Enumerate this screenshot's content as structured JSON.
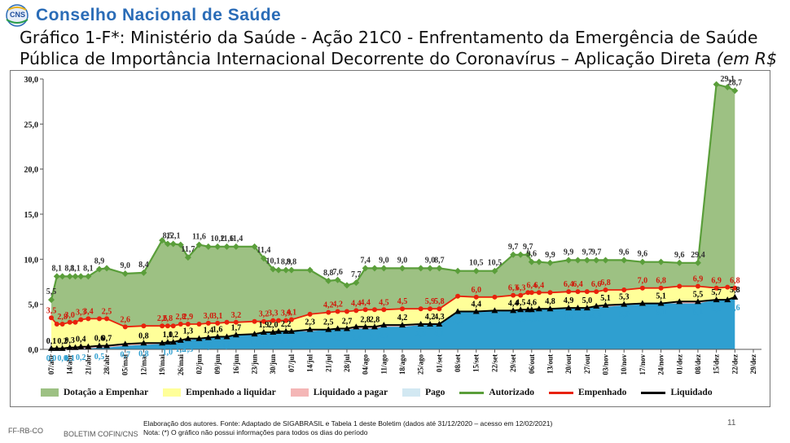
{
  "header": {
    "logo_text": "CNS",
    "org_name": "Conselho Nacional de Saúde",
    "title_main": "Gráfico 1-F*: Ministério da Saúde - Ação 21C0 - Enfrentamento da Emergência de Saúde Pública de Importância Internacional Decorrente do Coronavírus – Aplicação Direta ",
    "title_unit": "(em R$ bilhões)"
  },
  "footer": {
    "source": "Elaboração dos autores. Fonte: Adaptado de SIGABRASIL e Tabela 1 deste Boletim  (dados até 31/12/2020 – acesso em 12/02/2021)",
    "note": "Nota: (*) O gráfico não possui informações para todos os dias do período",
    "code": "FF-RB-CO",
    "bulletin": "BOLETIM COFIN/CNS",
    "page": "11"
  },
  "chart_data": {
    "type": "area",
    "title": "",
    "xlabel": "",
    "ylabel": "",
    "ylim": [
      0,
      30
    ],
    "yticks": [
      "0,0",
      "5,0",
      "10,0",
      "15,0",
      "20,0",
      "25,0",
      "30,0"
    ],
    "grid": false,
    "legend_position": "bottom",
    "x_tick_labels": [
      "07/abr",
      "14/abr",
      "21/abr",
      "28/abr",
      "05/mai",
      "12/mai",
      "19/mai",
      "26/mai",
      "02/jun",
      "09/jun",
      "16/jun",
      "23/jun",
      "30/jun",
      "07/jul",
      "14/jul",
      "21/jul",
      "28/jul",
      "04/ago",
      "11/ago",
      "18/ago",
      "25/ago",
      "01/set",
      "08/set",
      "15/set",
      "22/set",
      "29/set",
      "06/out",
      "13/out",
      "20/out",
      "27/out",
      "03/nov",
      "10/nov",
      "17/nov",
      "24/nov",
      "01/dez",
      "08/dez",
      "15/dez",
      "22/dez",
      "29/dez"
    ],
    "x": [
      0,
      0.3,
      0.6,
      1,
      1.3,
      1.6,
      2,
      2.6,
      3,
      4,
      5,
      6,
      6.3,
      6.6,
      7,
      7.4,
      8,
      8.5,
      9,
      9.5,
      10,
      11,
      11.5,
      12,
      12.3,
      12.7,
      13,
      14,
      15,
      15.5,
      16,
      16.5,
      17,
      17.5,
      18,
      19,
      20,
      20.5,
      21,
      22,
      23,
      24,
      25,
      25.4,
      25.8,
      26,
      26.4,
      27,
      28,
      28.5,
      29,
      29.5,
      30,
      31,
      32,
      33,
      34,
      35,
      36,
      36.6,
      37
    ],
    "series": [
      {
        "name": "Dotação a Empenhar",
        "kind": "area",
        "color": "#9dc183"
      },
      {
        "name": "Empenhado a liquidar",
        "kind": "area",
        "color": "#ffff99"
      },
      {
        "name": "Liquidado a pagar",
        "kind": "area",
        "color": "#f4b6b6"
      },
      {
        "name": "Pago",
        "kind": "area",
        "color": "#d2e8f2"
      },
      {
        "name": "Autorizado",
        "kind": "line",
        "color": "#5a9e3a",
        "marker": "diamond",
        "values": [
          5.5,
          8.1,
          8.1,
          8.1,
          8.1,
          8.1,
          8.1,
          8.9,
          9.0,
          8.4,
          8.5,
          12.1,
          11.7,
          11.7,
          11.6,
          10.2,
          11.6,
          11.4,
          11.4,
          11.4,
          11.4,
          11.4,
          10.1,
          8.9,
          8.8,
          8.8,
          8.8,
          8.8,
          7.6,
          7.7,
          7.1,
          7.4,
          9.0,
          9.0,
          9.0,
          9.0,
          9.0,
          9.0,
          9.0,
          8.7,
          8.7,
          8.7,
          10.5,
          10.5,
          10.5,
          9.7,
          9.7,
          9.6,
          9.9,
          9.9,
          9.9,
          9.9,
          9.9,
          9.9,
          9.7,
          9.7,
          9.6,
          9.6,
          29.4,
          29.1,
          28.7
        ]
      },
      {
        "name": "Empenhado",
        "kind": "line",
        "color": "#e8220c",
        "marker": "circle",
        "values": [
          3.5,
          2.8,
          2.8,
          3.0,
          3.0,
          3.3,
          3.4,
          3.4,
          3.4,
          2.5,
          2.6,
          2.6,
          2.6,
          2.6,
          2.8,
          2.8,
          2.8,
          2.9,
          2.9,
          3.0,
          3.0,
          3.1,
          3.1,
          3.2,
          3.2,
          3.2,
          3.3,
          3.9,
          4.1,
          4.2,
          4.2,
          4.3,
          4.4,
          4.4,
          4.4,
          4.5,
          4.5,
          4.5,
          4.5,
          5.9,
          5.8,
          5.8,
          6.0,
          6.0,
          6.3,
          6.3,
          6.3,
          6.3,
          6.4,
          6.4,
          6.4,
          6.4,
          6.6,
          6.6,
          6.8,
          6.8,
          7.0,
          7.0,
          6.8,
          6.9,
          6.8
        ]
      },
      {
        "name": "Liquidado",
        "kind": "line",
        "color": "#000000",
        "marker": "triangle",
        "values": [
          0.1,
          0.1,
          0.1,
          0.2,
          0.2,
          0.3,
          0.3,
          0.4,
          0.4,
          0.6,
          0.7,
          0.7,
          0.8,
          0.8,
          1.0,
          1.2,
          1.2,
          1.3,
          1.4,
          1.4,
          1.6,
          1.7,
          1.9,
          1.9,
          2.0,
          2.0,
          2.0,
          2.2,
          2.2,
          2.3,
          2.3,
          2.5,
          2.5,
          2.5,
          2.7,
          2.7,
          2.8,
          2.8,
          2.8,
          4.2,
          4.2,
          4.3,
          4.3,
          4.4,
          4.4,
          4.4,
          4.5,
          4.5,
          4.6,
          4.6,
          4.6,
          4.8,
          4.9,
          5.0,
          5.1,
          5.1,
          5.3,
          5.3,
          5.5,
          5.5,
          5.8
        ]
      },
      {
        "name": "Pago",
        "kind": "base",
        "color": "#2f9fd0",
        "values": [
          0.0,
          0.0,
          0.0,
          0.0,
          0.1,
          0.1,
          0.1,
          0.2,
          0.2,
          0.4,
          0.5,
          0.6,
          0.7,
          0.8,
          1.0,
          1.0,
          1.2,
          1.3,
          1.4,
          1.4,
          1.5,
          1.8,
          1.8,
          1.9,
          1.9,
          2.0,
          2.0,
          2.0,
          2.2,
          2.2,
          2.2,
          2.3,
          2.3,
          2.3,
          2.5,
          2.5,
          2.7,
          2.7,
          2.8,
          4.1,
          4.2,
          4.2,
          4.3,
          4.3,
          4.3,
          4.4,
          4.4,
          4.5,
          4.5,
          4.6,
          4.6,
          4.7,
          4.7,
          4.9,
          5.0,
          5.1,
          5.1,
          5.1,
          5.5,
          5.6,
          5.6
        ]
      }
    ],
    "annotations": {
      "autorizado": [
        "5,5",
        "8,1",
        "8,1",
        "8,1",
        "8,1",
        "8,9",
        "9,0",
        "8,4",
        "8,5",
        "12,1",
        "11,7",
        "11,6",
        "10,2",
        "11,6",
        "11,4",
        "11,4",
        "10,1",
        "8,9",
        "8,8",
        "8,8",
        "7,6",
        "7,7",
        "7,4",
        "9,0",
        "9,0",
        "9,0",
        "8,7",
        "10,5",
        "10,5",
        "9,7",
        "9,7",
        "9,6",
        "9,9",
        "9,9",
        "9,7",
        "9,7",
        "9,6",
        "9,6",
        "9,6",
        "29,4",
        "29,1",
        "28,7"
      ],
      "empenhado": [
        "3,5",
        "2,8",
        "3,0",
        "3,3",
        "3,4",
        "2,5",
        "2,6",
        "2,6",
        "2,8",
        "2,8",
        "2,9",
        "3,0",
        "3,1",
        "3,2",
        "3,2",
        "3,3",
        "3,9",
        "4,1",
        "4,2",
        "4,2",
        "4,4",
        "4,4",
        "4,5",
        "4,5",
        "5,9",
        "5,8",
        "6,0",
        "6,3",
        "6,3",
        "6,4",
        "6,4",
        "6,4",
        "6,4",
        "6,6",
        "6,8",
        "7,0",
        "6,8",
        "6,9",
        "6,9",
        "6,8"
      ],
      "liquidado": [
        "0,1",
        "0,2",
        "0,3",
        "0,4",
        "0,6",
        "0,7",
        "0,8",
        "1,0",
        "1,2",
        "1,3",
        "1,4",
        "1,6",
        "1,7",
        "1,9",
        "2,0",
        "2,2",
        "2,3",
        "2,5",
        "2,7",
        "2,8",
        "2,8",
        "4,2",
        "4,2",
        "4,3",
        "4,4",
        "4,4",
        "4,5",
        "4,6",
        "4,8",
        "4,9",
        "5,0",
        "5,1",
        "5,3",
        "5,1",
        "5,5",
        "5,7",
        "5,8"
      ],
      "pago": [
        "0,0",
        "0,0",
        "0,1",
        "0,2",
        "0,5",
        "0,7",
        "0,8",
        "1,0",
        "1,2",
        "1,3",
        "1,4",
        "1,5",
        "1,8",
        "1,9",
        "2,0",
        "2,2",
        "2,2",
        "2,3",
        "2,5",
        "2,7",
        "2,7",
        "2,8",
        "4,1",
        "4,2",
        "4,3",
        "4,4",
        "4,5",
        "4,6",
        "4,7",
        "4,7",
        "4,9",
        "5,0",
        "5,1",
        "5,1",
        "5,5",
        "5,6"
      ]
    }
  }
}
